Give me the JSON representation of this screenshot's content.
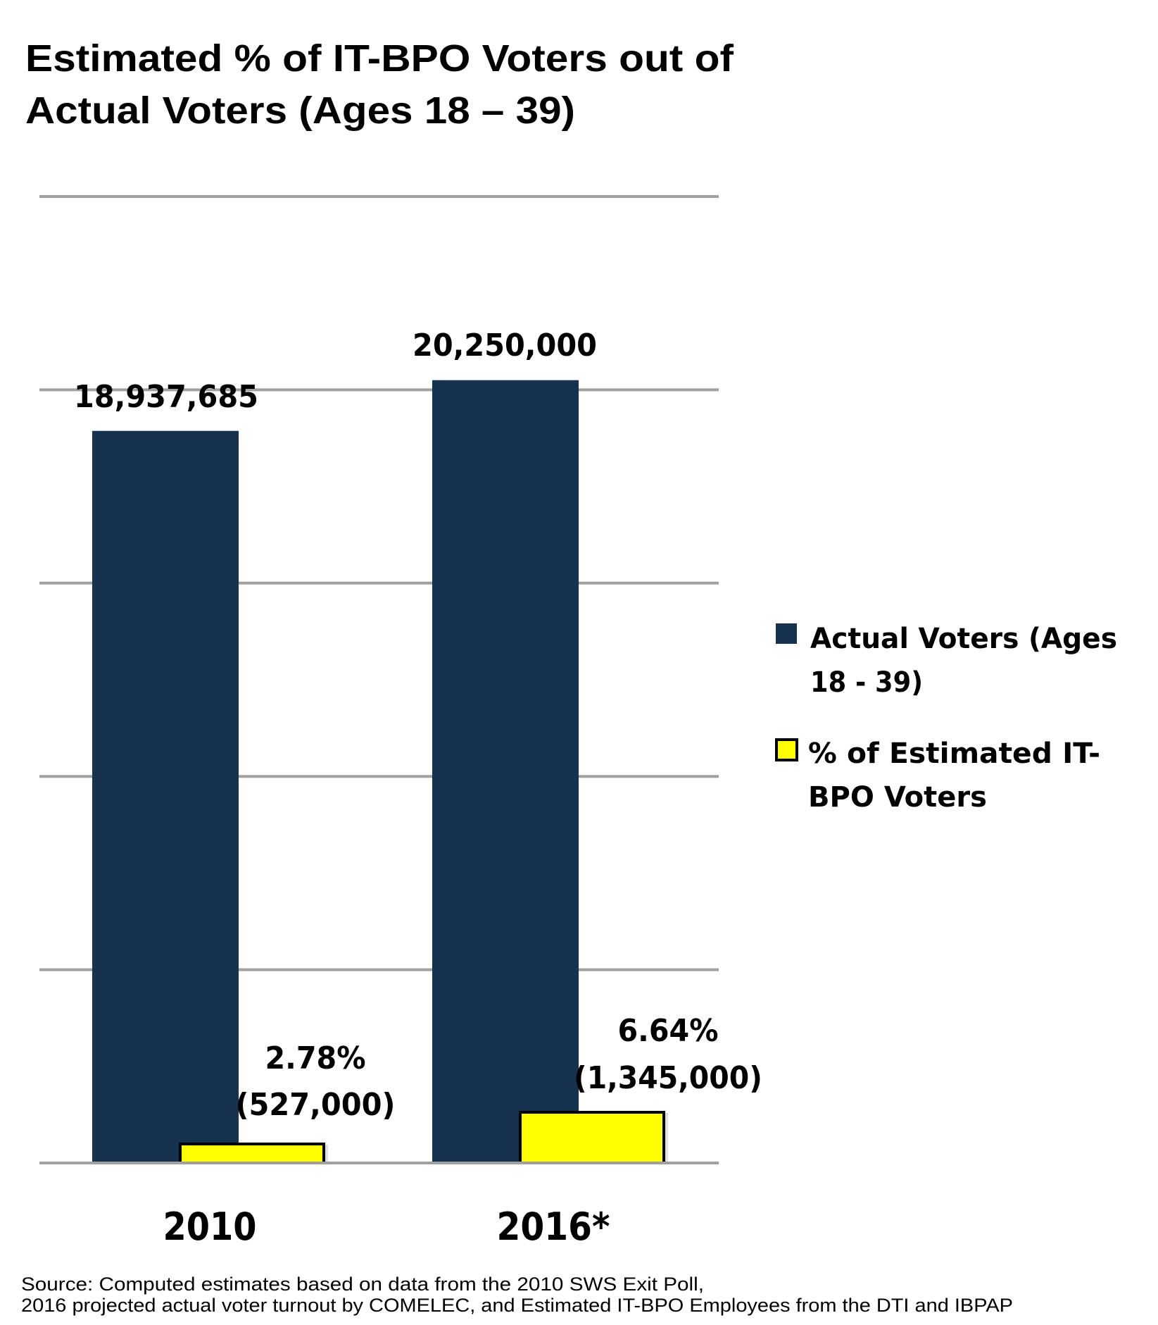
{
  "chart_data": {
    "type": "bar",
    "title": "Estimated % of IT-BPO Voters out of Actual Voters (Ages 18 – 39)",
    "title_lines": [
      "Estimated % of IT-BPO Voters out of",
      "Actual Voters (Ages 18 – 39)"
    ],
    "categories": [
      "2010",
      "2016*"
    ],
    "xlabel": "",
    "ylabel": "",
    "ylim": [
      0,
      25000000
    ],
    "y_gridlines": [
      0,
      5000000,
      10000000,
      15000000,
      20000000,
      25000000
    ],
    "y_tick_labels_visible": false,
    "grid": true,
    "legend_position": "right",
    "series": [
      {
        "name": "Actual Voters (Ages 18 - 39)",
        "legend_lines": [
          "Actual Voters (Ages",
          "18 - 39)"
        ],
        "color": "#17324f",
        "values": [
          18937685,
          20250000
        ],
        "data_labels": [
          [
            "18,937,685"
          ],
          [
            "20,250,000"
          ]
        ]
      },
      {
        "name": "% of Estimated IT-BPO Voters",
        "legend_lines": [
          "% of Estimated IT-",
          "BPO Voters"
        ],
        "color": "#ffff00",
        "border_color": "#000000",
        "values": [
          527000,
          1345000
        ],
        "percent_values": [
          2.78,
          6.64
        ],
        "data_labels": [
          [
            "2.78%",
            "(527,000)"
          ],
          [
            "6.64%",
            "(1,345,000)"
          ]
        ]
      }
    ],
    "source_lines": [
      "Source: Computed estimates based on data from the 2010 SWS Exit Poll,",
      "2016 projected actual voter turnout by COMELEC, and Estimated IT-BPO Employees from the DTI and IBPAP"
    ]
  }
}
